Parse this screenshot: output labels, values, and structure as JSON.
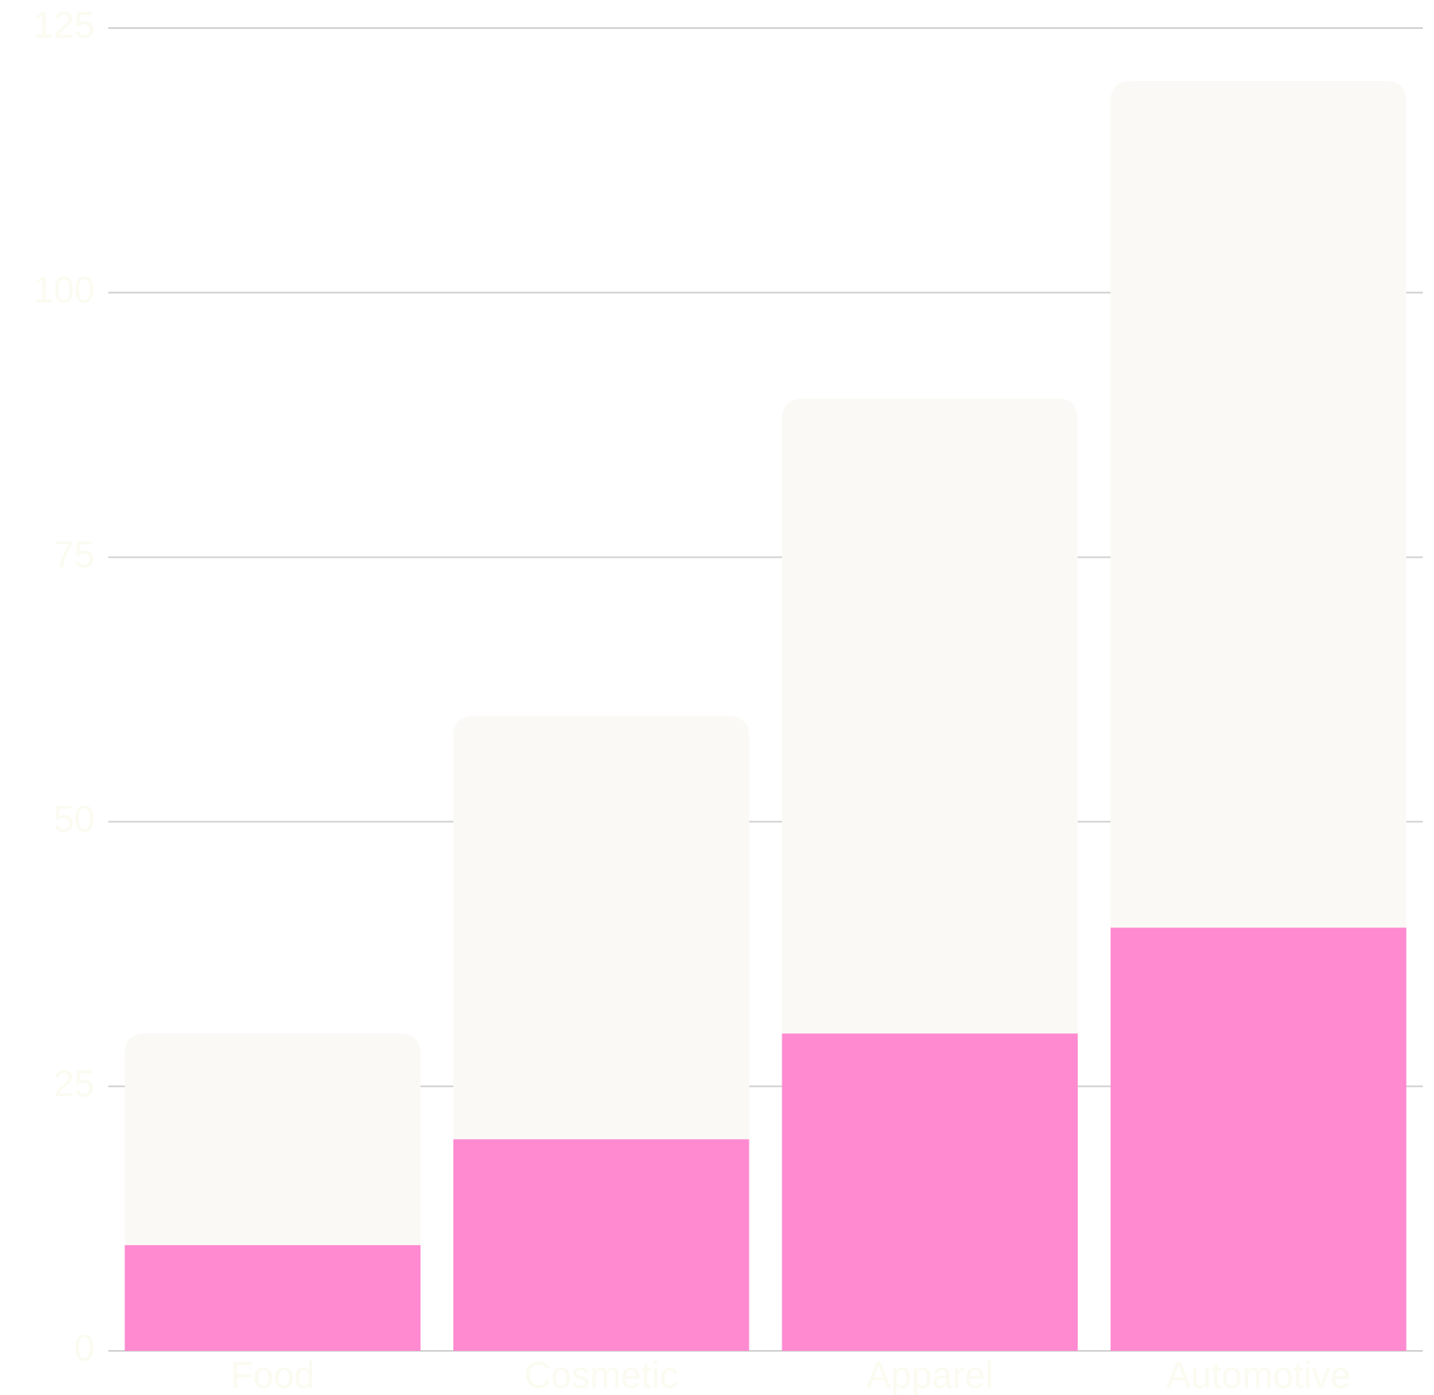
{
  "chart_data": {
    "type": "stacked_bar",
    "categories": [
      "Food",
      "Cosmetic",
      "Apparel",
      "Automotive"
    ],
    "series": [
      {
        "color": "#ff8ad0",
        "values": [
          10,
          20,
          30,
          40
        ]
      },
      {
        "color": "#faf9f5",
        "values": [
          20,
          40,
          60,
          80
        ]
      }
    ],
    "ylim": [
      0,
      125
    ],
    "yticks": [
      0,
      25,
      50,
      75,
      100,
      125
    ],
    "grid": true
  }
}
